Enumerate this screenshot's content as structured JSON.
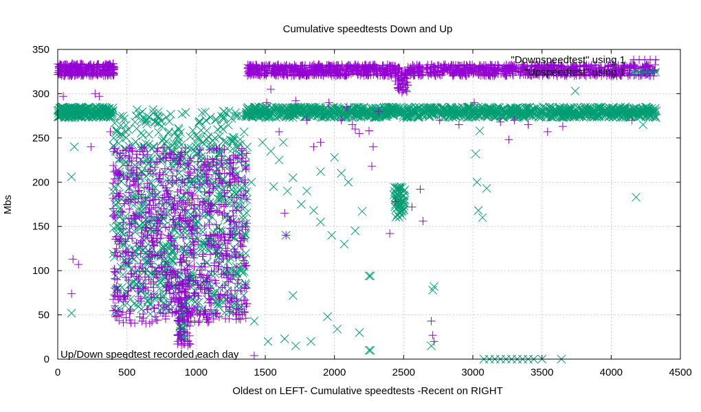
{
  "chart_data": {
    "type": "scatter",
    "title": "Cumulative speedtests Down and Up",
    "xlabel": "Oldest on LEFT- Cumulative speedtests -Recent on RIGHT",
    "ylabel": "Mbs",
    "annotation": "Up/Down speedtest recorded each day",
    "xlim": [
      0,
      4500
    ],
    "ylim": [
      0,
      350
    ],
    "xticks": [
      0,
      500,
      1000,
      1500,
      2000,
      2500,
      3000,
      3500,
      4000,
      4500
    ],
    "yticks": [
      0,
      50,
      100,
      150,
      200,
      250,
      300,
      350
    ],
    "legend_position": "top-right",
    "series": [
      {
        "name": "\"Downspeedtest\" using 1",
        "marker": "plus",
        "color": "#9400d3",
        "bands": [
          {
            "x": [
              0,
              410
            ],
            "y": [
              320,
              334
            ],
            "n": 260
          },
          {
            "x": [
              1370,
              2440
            ],
            "y": [
              320,
              333
            ],
            "n": 520
          },
          {
            "x": [
              2440,
              2530
            ],
            "y": [
              300,
              330
            ],
            "n": 60
          },
          {
            "x": [
              2530,
              4320
            ],
            "y": [
              320,
              333
            ],
            "n": 720
          },
          {
            "x": [
              400,
              1370
            ],
            "y": [
              40,
              240
            ],
            "n": 850
          },
          {
            "x": [
              860,
              960
            ],
            "y": [
              15,
              90
            ],
            "n": 70
          }
        ],
        "points": [
          [
            40,
            297
          ],
          [
            100,
            74
          ],
          [
            110,
            113
          ],
          [
            150,
            107
          ],
          [
            240,
            240
          ],
          [
            270,
            300
          ],
          [
            300,
            297
          ],
          [
            380,
            257
          ],
          [
            870,
            20
          ],
          [
            890,
            23
          ],
          [
            1420,
            4
          ],
          [
            1510,
            290
          ],
          [
            1540,
            305
          ],
          [
            1600,
            257
          ],
          [
            1640,
            165
          ],
          [
            1650,
            140
          ],
          [
            1720,
            292
          ],
          [
            1800,
            270
          ],
          [
            1850,
            240
          ],
          [
            1900,
            245
          ],
          [
            1960,
            290
          ],
          [
            2050,
            270
          ],
          [
            2090,
            285
          ],
          [
            2130,
            265
          ],
          [
            2150,
            260
          ],
          [
            2180,
            255
          ],
          [
            2250,
            258
          ],
          [
            2270,
            218
          ],
          [
            2280,
            240
          ],
          [
            2320,
            280
          ],
          [
            2400,
            142
          ],
          [
            2440,
            178
          ],
          [
            2560,
            172
          ],
          [
            2620,
            192
          ],
          [
            2640,
            156
          ],
          [
            2700,
            43
          ],
          [
            2710,
            27
          ],
          [
            2720,
            20
          ],
          [
            2760,
            270
          ],
          [
            2900,
            265
          ],
          [
            3010,
            290
          ],
          [
            3200,
            268
          ],
          [
            3260,
            248
          ],
          [
            3300,
            270
          ],
          [
            3400,
            265
          ],
          [
            3540,
            257
          ],
          [
            3650,
            263
          ],
          [
            4150,
            270
          ]
        ]
      },
      {
        "name": "\"Upspeedtest\" using 1",
        "marker": "cross",
        "color": "#009e73",
        "bands": [
          {
            "x": [
              0,
              400
            ],
            "y": [
              273,
              285
            ],
            "n": 240
          },
          {
            "x": [
              1350,
              4330
            ],
            "y": [
              273,
              285
            ],
            "n": 1150
          },
          {
            "x": [
              400,
              1370
            ],
            "y": [
              50,
              282
            ],
            "n": 850
          },
          {
            "x": [
              2430,
              2510
            ],
            "y": [
              160,
              195
            ],
            "n": 60
          },
          {
            "x": [
              880,
              920
            ],
            "y": [
              20,
              60
            ],
            "n": 30
          }
        ],
        "points": [
          [
            100,
            206
          ],
          [
            100,
            52
          ],
          [
            120,
            240
          ],
          [
            1400,
            200
          ],
          [
            1420,
            43
          ],
          [
            1480,
            245
          ],
          [
            1520,
            20
          ],
          [
            1540,
            235
          ],
          [
            1560,
            195
          ],
          [
            1600,
            225
          ],
          [
            1630,
            245
          ],
          [
            1640,
            23
          ],
          [
            1650,
            140
          ],
          [
            1660,
            190
          ],
          [
            1700,
            205
          ],
          [
            1700,
            72
          ],
          [
            1720,
            15
          ],
          [
            1760,
            175
          ],
          [
            1800,
            190
          ],
          [
            1830,
            20
          ],
          [
            1850,
            168
          ],
          [
            1900,
            155
          ],
          [
            1900,
            212
          ],
          [
            1950,
            48
          ],
          [
            1980,
            140
          ],
          [
            2000,
            228
          ],
          [
            2020,
            34
          ],
          [
            2050,
            210
          ],
          [
            2070,
            130
          ],
          [
            2100,
            200
          ],
          [
            2150,
            145
          ],
          [
            2180,
            30
          ],
          [
            2200,
            167
          ],
          [
            2250,
            94
          ],
          [
            2260,
            94
          ],
          [
            2250,
            10
          ],
          [
            2260,
            10
          ],
          [
            2700,
            15
          ],
          [
            2710,
            78
          ],
          [
            2720,
            82
          ],
          [
            3020,
            232
          ],
          [
            3030,
            200
          ],
          [
            3040,
            168
          ],
          [
            3050,
            258
          ],
          [
            3070,
            160
          ],
          [
            3100,
            193
          ],
          [
            3080,
            0
          ],
          [
            3120,
            0
          ],
          [
            3160,
            0
          ],
          [
            3200,
            0
          ],
          [
            3240,
            0
          ],
          [
            3280,
            0
          ],
          [
            3320,
            0
          ],
          [
            3360,
            0
          ],
          [
            3400,
            0
          ],
          [
            3440,
            0
          ],
          [
            3500,
            0
          ],
          [
            3640,
            0
          ],
          [
            3740,
            303
          ],
          [
            4180,
            183
          ],
          [
            4230,
            265
          ]
        ]
      }
    ]
  }
}
